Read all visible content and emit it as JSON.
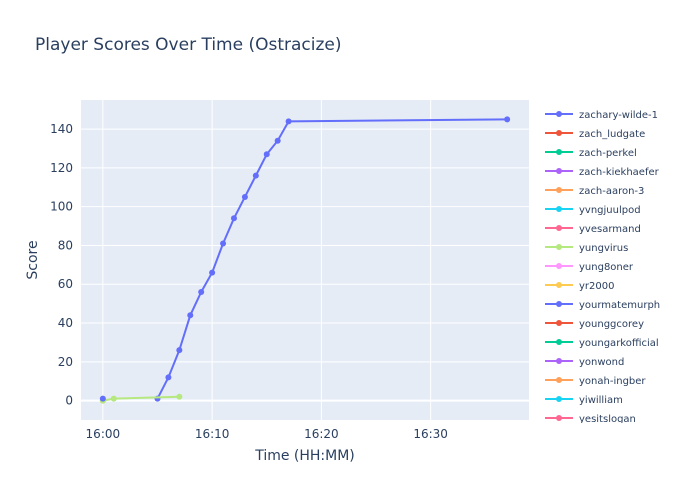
{
  "chart_data": {
    "type": "line",
    "title": "Player Scores Over Time (Ostracize)",
    "x_label": "Time (HH:MM)",
    "y_label": "Score",
    "xlim": [
      "15:58",
      "16:39"
    ],
    "xticks": [
      "16:00",
      "16:10",
      "16:20",
      "16:30"
    ],
    "ylim": [
      -10,
      155
    ],
    "yticks": [
      0,
      20,
      40,
      60,
      80,
      100,
      120,
      140
    ],
    "grid": true,
    "legend_position": "right",
    "series": [
      {
        "name": "zachary-wilde-1",
        "color": "#636efa",
        "x": [
          "16:05",
          "16:06",
          "16:07",
          "16:08",
          "16:09",
          "16:10",
          "16:11",
          "16:12",
          "16:13",
          "16:14",
          "16:15",
          "16:16",
          "16:17",
          "16:37"
        ],
        "values": [
          1,
          12,
          26,
          44,
          56,
          66,
          81,
          94,
          105,
          116,
          127,
          134,
          144,
          145
        ]
      },
      {
        "name": "zach_ludgate",
        "color": "#ef553b",
        "x": [],
        "values": []
      },
      {
        "name": "zach-perkel",
        "color": "#00cc96",
        "x": [],
        "values": []
      },
      {
        "name": "zach-kiekhaefer",
        "color": "#ab63fa",
        "x": [],
        "values": []
      },
      {
        "name": "zach-aaron-3",
        "color": "#ffa15a",
        "x": [
          "16:00"
        ],
        "values": [
          0
        ]
      },
      {
        "name": "yvngjuulpod",
        "color": "#19d3f3",
        "x": [],
        "values": []
      },
      {
        "name": "yvesarmand",
        "color": "#ff6692",
        "x": [],
        "values": []
      },
      {
        "name": "yungvirus",
        "color": "#b6e880",
        "x": [
          "16:00",
          "16:01",
          "16:07"
        ],
        "values": [
          0,
          1,
          2
        ]
      },
      {
        "name": "yung8oner",
        "color": "#ff97ff",
        "x": [],
        "values": []
      },
      {
        "name": "yr2000",
        "color": "#fecb52",
        "x": [],
        "values": []
      },
      {
        "name": "yourmatemurph",
        "color": "#636efa",
        "x": [
          "16:00"
        ],
        "values": [
          1
        ]
      },
      {
        "name": "younggcorey",
        "color": "#ef553b",
        "x": [],
        "values": []
      },
      {
        "name": "youngarkofficial",
        "color": "#00cc96",
        "x": [],
        "values": []
      },
      {
        "name": "yonwond",
        "color": "#ab63fa",
        "x": [],
        "values": []
      },
      {
        "name": "yonah-ingber",
        "color": "#ffa15a",
        "x": [],
        "values": []
      },
      {
        "name": "yiwilliam",
        "color": "#19d3f3",
        "x": [],
        "values": []
      },
      {
        "name": "yesitslogan",
        "color": "#ff6692",
        "x": [],
        "values": []
      }
    ]
  }
}
